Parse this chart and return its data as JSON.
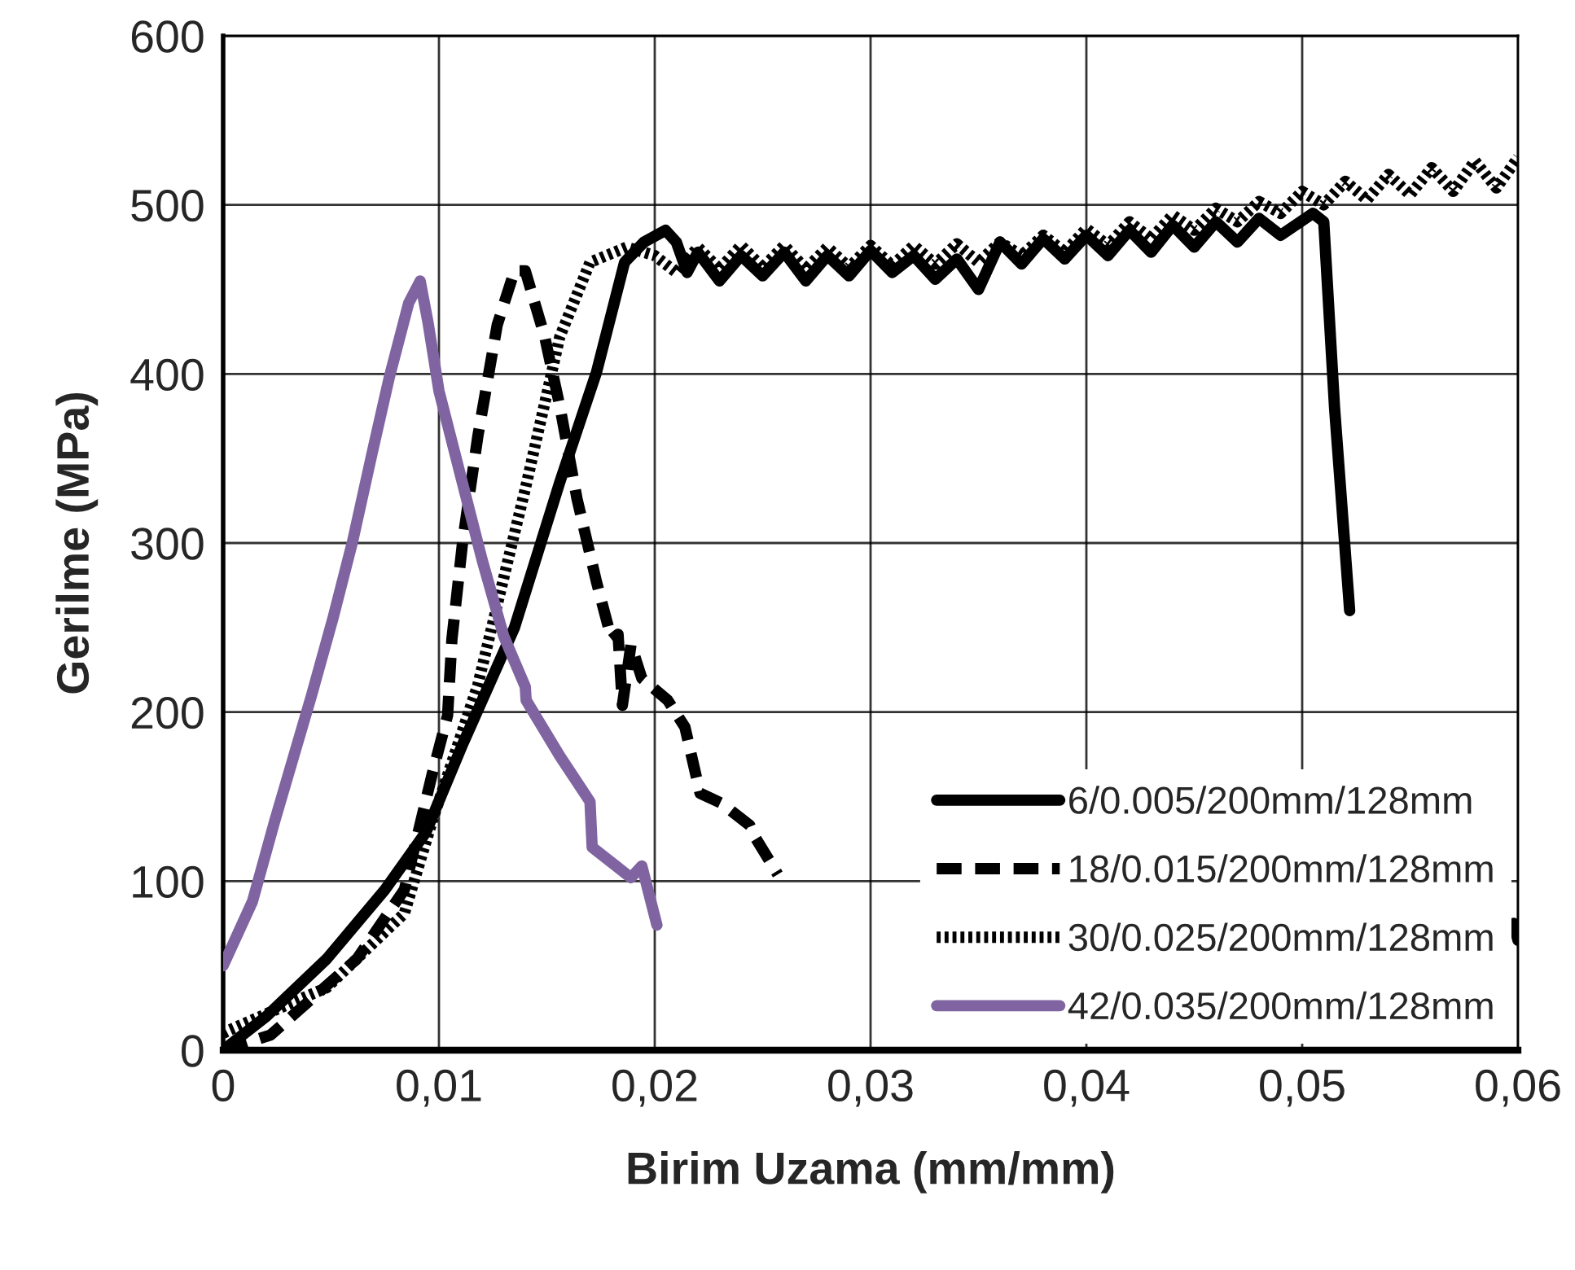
{
  "chart_data": {
    "type": "line",
    "xlabel": "Birim Uzama (mm/mm)",
    "ylabel": "Gerilme (MPa)",
    "xlim": [
      0,
      0.06
    ],
    "ylim": [
      0,
      600
    ],
    "xticks": [
      0,
      {
        "value": 0.01,
        "label": "0,01"
      },
      {
        "value": 0.02,
        "label": "0,02"
      },
      {
        "value": 0.03,
        "label": "0,03"
      },
      {
        "value": 0.04,
        "label": "0,04"
      },
      {
        "value": 0.05,
        "label": "0,05"
      },
      {
        "value": 0.06,
        "label": "0,06"
      }
    ],
    "yticks": [
      0,
      100,
      200,
      300,
      400,
      500,
      600
    ],
    "grid": true,
    "legend": "bottom right",
    "series": [
      {
        "name": "6/0.005/200mm/128mm",
        "color": "#000000",
        "line_style": "solid",
        "x": [
          0,
          0.002,
          0.0048,
          0.0075,
          0.0094,
          0.0111,
          0.0135,
          0.0156,
          0.0173,
          0.0186,
          0.0195,
          0.0205,
          0.021,
          0.0215,
          0.022,
          0.023,
          0.024,
          0.025,
          0.026,
          0.027,
          0.028,
          0.029,
          0.03,
          0.031,
          0.032,
          0.033,
          0.034,
          0.035,
          0.036,
          0.037,
          0.038,
          0.039,
          0.04,
          0.041,
          0.042,
          0.043,
          0.044,
          0.045,
          0.046,
          0.047,
          0.048,
          0.049,
          0.0505,
          0.051,
          0.0515,
          0.0522,
          0.0525,
          0.0598,
          0.06
        ],
        "values": [
          0,
          20,
          54,
          95,
          129,
          181,
          250,
          336,
          401,
          466,
          478,
          485,
          478,
          460,
          472,
          455,
          470,
          458,
          472,
          455,
          470,
          458,
          473,
          460,
          470,
          456,
          468,
          450,
          478,
          465,
          480,
          468,
          482,
          470,
          485,
          472,
          488,
          475,
          490,
          478,
          492,
          482,
          495,
          490,
          380,
          260,
          null,
          75,
          65
        ]
      },
      {
        "name": "18/0.015/200mm/128mm",
        "color": "#000000",
        "line_style": "dashed",
        "x": [
          0,
          0.0022,
          0.0062,
          0.0084,
          0.0097,
          0.0104,
          0.0106,
          0.0111,
          0.0118,
          0.0127,
          0.0135,
          0.014,
          0.0149,
          0.0156,
          0.0164,
          0.0173,
          0.018,
          0.0183,
          0.0185,
          0.0189,
          0.0194,
          0.0206,
          0.0214,
          0.0221,
          0.0231,
          0.0244,
          0.0246,
          0.0257
        ],
        "values": [
          0,
          9,
          54,
          95,
          164,
          198,
          243,
          301,
          363,
          429,
          461,
          461,
          422,
          381,
          326,
          277,
          243,
          246,
          204,
          240,
          220,
          207,
          191,
          152,
          146,
          133,
          127,
          104
        ]
      },
      {
        "name": "30/0.025/200mm/128mm",
        "color": "#000000",
        "line_style": "dotted",
        "x": [
          0,
          0.0003,
          0.0048,
          0.0084,
          0.0097,
          0.0118,
          0.014,
          0.0156,
          0.017,
          0.0187,
          0.02,
          0.021,
          0.022,
          0.023,
          0.024,
          0.025,
          0.026,
          0.027,
          0.028,
          0.029,
          0.03,
          0.031,
          0.032,
          0.033,
          0.034,
          0.035,
          0.036,
          0.037,
          0.038,
          0.039,
          0.04,
          0.041,
          0.042,
          0.043,
          0.044,
          0.045,
          0.046,
          0.047,
          0.048,
          0.049,
          0.05,
          0.051,
          0.052,
          0.053,
          0.054,
          0.055,
          0.056,
          0.057,
          0.058,
          0.059,
          0.06
        ],
        "values": [
          10,
          12,
          37,
          81,
          136,
          216,
          332,
          422,
          466,
          475,
          470,
          460,
          475,
          462,
          476,
          463,
          476,
          462,
          475,
          463,
          476,
          464,
          476,
          465,
          477,
          466,
          478,
          470,
          482,
          472,
          486,
          476,
          490,
          480,
          494,
          485,
          498,
          490,
          502,
          495,
          508,
          500,
          514,
          503,
          518,
          506,
          522,
          508,
          526,
          510,
          528
        ]
      },
      {
        "name": "42/0.035/200mm/128mm",
        "color": "#8064a2",
        "line_style": "solid",
        "x": [
          0,
          0.00136,
          0.0024,
          0.0041,
          0.0051,
          0.006,
          0.0069,
          0.0077,
          0.0086,
          0.00913,
          0.0095,
          0.01,
          0.011,
          0.012,
          0.013,
          0.014,
          0.01404,
          0.0156,
          0.017,
          0.0171,
          0.0189,
          0.0194,
          0.0201
        ],
        "values": [
          50,
          88,
          136,
          210,
          256,
          301,
          353,
          398,
          442,
          455,
          430,
          390,
          340,
          290,
          245,
          215,
          207,
          174,
          147,
          120,
          102,
          109,
          74
        ]
      }
    ]
  }
}
